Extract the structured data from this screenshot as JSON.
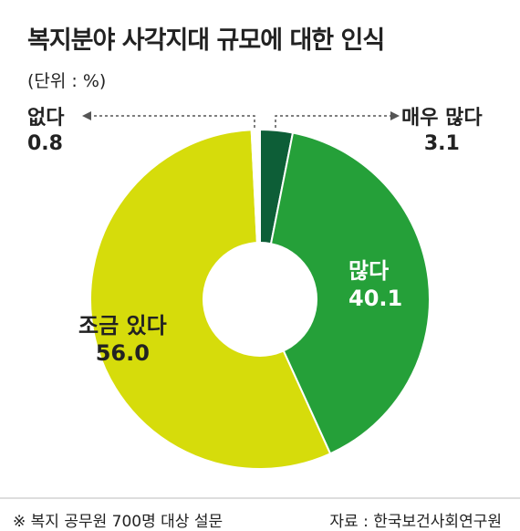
{
  "chart_data": {
    "type": "pie",
    "title": "복지분야 사각지대 규모에 대한 인식",
    "unit_label": "(단위 : %)",
    "categories": [
      "매우 많다",
      "많다",
      "조금 있다",
      "없다"
    ],
    "values": [
      3.1,
      40.1,
      56.0,
      0.8
    ],
    "value_labels": [
      "3.1",
      "40.1",
      "56.0",
      "0.8"
    ],
    "colors": [
      "#0d5e37",
      "#25a039",
      "#d6dc0b",
      "#ffffff"
    ],
    "legend": "none"
  },
  "footer": {
    "note": "※ 복지 공무원 700명 대상 설문",
    "source": "자료 : 한국보건사회연구원"
  }
}
